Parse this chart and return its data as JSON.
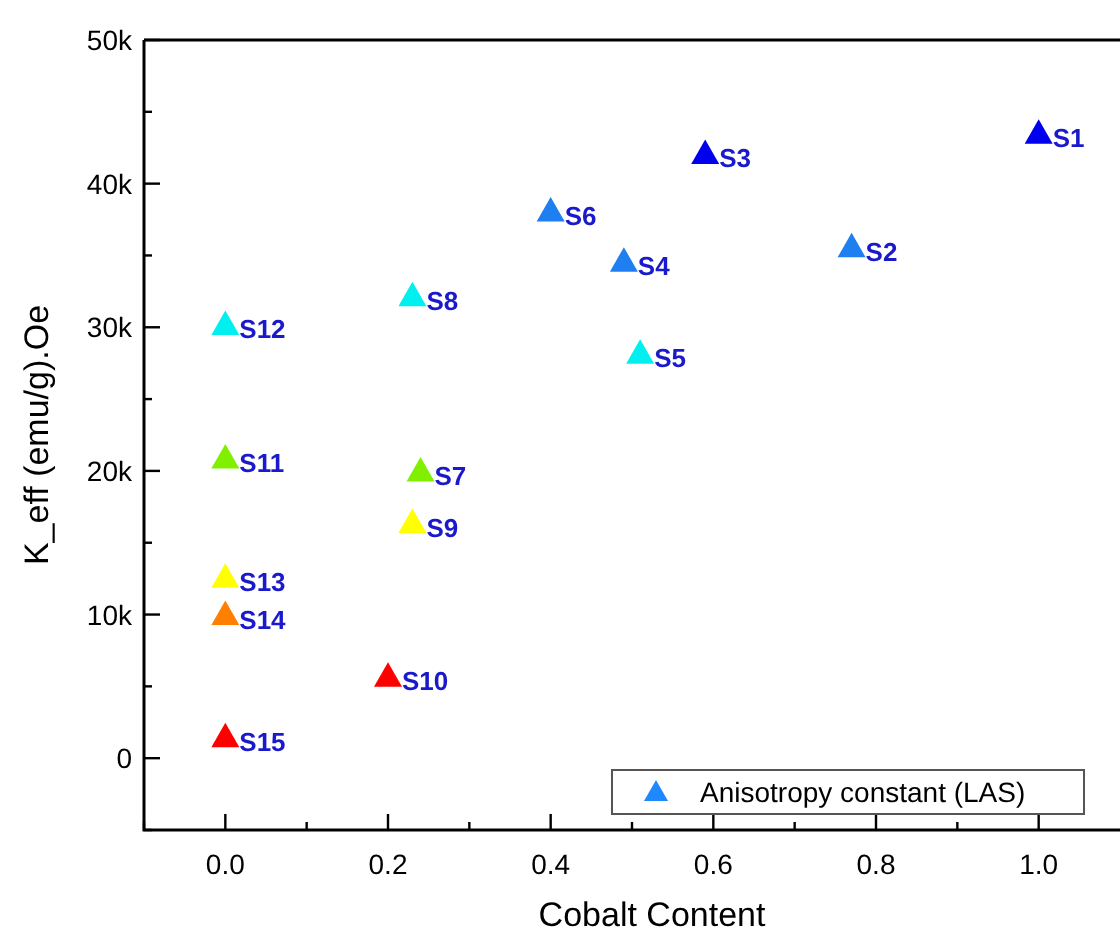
{
  "chart_data": {
    "type": "scatter",
    "xlabel": "Cobalt Content",
    "ylabel": "K_eff (emu/g).Oe",
    "xlim": [
      -0.1,
      1.1
    ],
    "ylim": [
      -5000,
      50000
    ],
    "xticks": [
      {
        "value": -0.1,
        "label": null
      },
      {
        "value": 0,
        "label": "0.0"
      },
      {
        "value": 0.1,
        "label": null
      },
      {
        "value": 0.2,
        "label": "0.2"
      },
      {
        "value": 0.3,
        "label": null
      },
      {
        "value": 0.4,
        "label": "0.4"
      },
      {
        "value": 0.5,
        "label": null
      },
      {
        "value": 0.6,
        "label": "0.6"
      },
      {
        "value": 0.7,
        "label": null
      },
      {
        "value": 0.8,
        "label": "0.8"
      },
      {
        "value": 0.9,
        "label": null
      },
      {
        "value": 1,
        "label": "1.0"
      }
    ],
    "yticks": [
      {
        "value": -5000,
        "label": null
      },
      {
        "value": 0,
        "label": "0"
      },
      {
        "value": 5000,
        "label": null
      },
      {
        "value": 10000,
        "label": "10k"
      },
      {
        "value": 15000,
        "label": null
      },
      {
        "value": 20000,
        "label": "20k"
      },
      {
        "value": 25000,
        "label": null
      },
      {
        "value": 30000,
        "label": "30k"
      },
      {
        "value": 35000,
        "label": null
      },
      {
        "value": 40000,
        "label": "40k"
      },
      {
        "value": 45000,
        "label": null
      },
      {
        "value": 50000,
        "label": "50k"
      }
    ],
    "marker": "triangle",
    "legend": "bottom right",
    "grid": false,
    "series": [
      {
        "name": "Anisotropy constant (LAS)",
        "color": "#1e88ff",
        "x": [
          1.0,
          0.77,
          0.59,
          0.49,
          0.51,
          0.4,
          0.24,
          0.23,
          0.23,
          0.2,
          0,
          0,
          0,
          0,
          0
        ],
        "values": [
          43500,
          35600,
          42100,
          34600,
          28200,
          38100,
          20000,
          32200,
          16400,
          5700,
          20900,
          30200,
          12600,
          10000,
          1500
        ],
        "colors": [
          "#0000ee",
          "#1e7ff0",
          "#0000ee",
          "#1e7ff0",
          "#00f0f0",
          "#1e7ff0",
          "#80f000",
          "#00f0f0",
          "#ffff00",
          "#ff0000",
          "#80f000",
          "#00f0f0",
          "#ffff00",
          "#ff8000",
          "#ff0000"
        ]
      }
    ],
    "annotations": [
      {
        "text": "S1",
        "x": 1.0,
        "y": 43500
      },
      {
        "text": "S2",
        "x": 0.77,
        "y": 35600
      },
      {
        "text": "S3",
        "x": 0.59,
        "y": 42100
      },
      {
        "text": "S4",
        "x": 0.49,
        "y": 34600
      },
      {
        "text": "S5",
        "x": 0.51,
        "y": 28200
      },
      {
        "text": "S6",
        "x": 0.4,
        "y": 38100
      },
      {
        "text": "S7",
        "x": 0.24,
        "y": 20000
      },
      {
        "text": "S8",
        "x": 0.23,
        "y": 32200
      },
      {
        "text": "S9",
        "x": 0.23,
        "y": 16400
      },
      {
        "text": "S10",
        "x": 0.2,
        "y": 5700
      },
      {
        "text": "S11",
        "x": 0,
        "y": 20900
      },
      {
        "text": "S12",
        "x": 0,
        "y": 30200
      },
      {
        "text": "S13",
        "x": 0,
        "y": 12600
      },
      {
        "text": "S14",
        "x": 0,
        "y": 10000
      },
      {
        "text": "S15",
        "x": 0,
        "y": 1500
      }
    ]
  }
}
